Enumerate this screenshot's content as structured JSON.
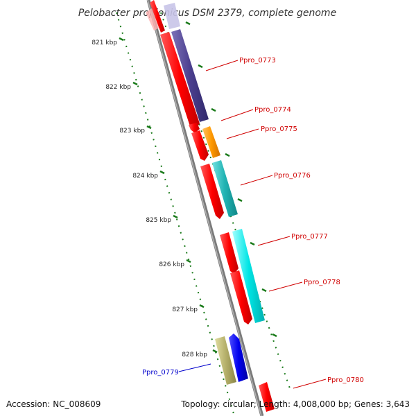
{
  "title": "Pelobacter propionicus DSM 2379, complete genome",
  "footer": {
    "accession": "Accession: NC_008609",
    "summary": "Topology: circular; Length: 4,008,000 bp; Genes: 3,643"
  },
  "scale_labels": [
    "821 kbp",
    "822 kbp",
    "823 kbp",
    "824 kbp",
    "825 kbp",
    "826 kbp",
    "827 kbp",
    "828 kbp"
  ],
  "gene_labels": [
    {
      "text": "Ppro_0773",
      "color": "#d00000"
    },
    {
      "text": "Ppro_0774",
      "color": "#d00000"
    },
    {
      "text": "Ppro_0775",
      "color": "#d00000"
    },
    {
      "text": "Ppro_0776",
      "color": "#d00000"
    },
    {
      "text": "Ppro_0777",
      "color": "#d00000"
    },
    {
      "text": "Ppro_0778",
      "color": "#d00000"
    },
    {
      "text": "Ppro_0779",
      "color": "#0000cc"
    },
    {
      "text": "Ppro_0780",
      "color": "#d00000"
    }
  ],
  "colors": {
    "backbone": "#808080",
    "tick": "#1a7a1a",
    "cds": "#ff0000",
    "purple": "#4b3f8f",
    "orange": "#ff9900",
    "teal": "#20b2b2",
    "cyan": "#00e5e5",
    "blue": "#0000ee",
    "khaki": "#b5b06a"
  }
}
